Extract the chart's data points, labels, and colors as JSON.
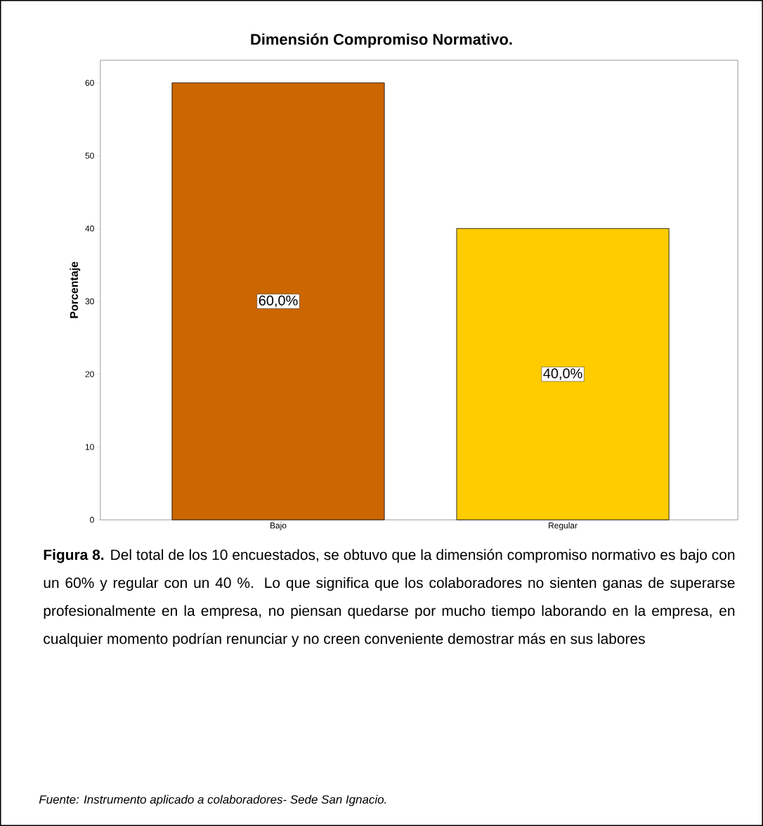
{
  "chart_data": {
    "type": "bar",
    "title": "Dimensión Compromiso Normativo.",
    "ylabel": "Porcentaje",
    "categories": [
      "Bajo",
      "Regular"
    ],
    "values": [
      60,
      40
    ],
    "colors": [
      "#cc6600",
      "#ffcc00"
    ],
    "value_labels": [
      "60,0%",
      "40,0%"
    ],
    "ylim": [
      0,
      63.1
    ],
    "yticks": [
      0,
      10,
      20,
      30,
      40,
      50,
      60
    ],
    "annotations": [
      "**Figura 8.** Del total de los 10 encuestados, se obtuvo que la dimensión compromiso normativo es bajo con un 60% y regular con un 40 %. Lo que significa que los colaboradores no sienten ganas de superarse profesionalmente en la empresa, no piensan quedarse por mucho tiempo laborando en la empresa, en cualquier momento podrían renunciar y no creen conveniente demostrar más en sus labores",
      "*Fuente: Instrumento aplicado a colaboradores- Sede San Ignacio.*"
    ]
  }
}
